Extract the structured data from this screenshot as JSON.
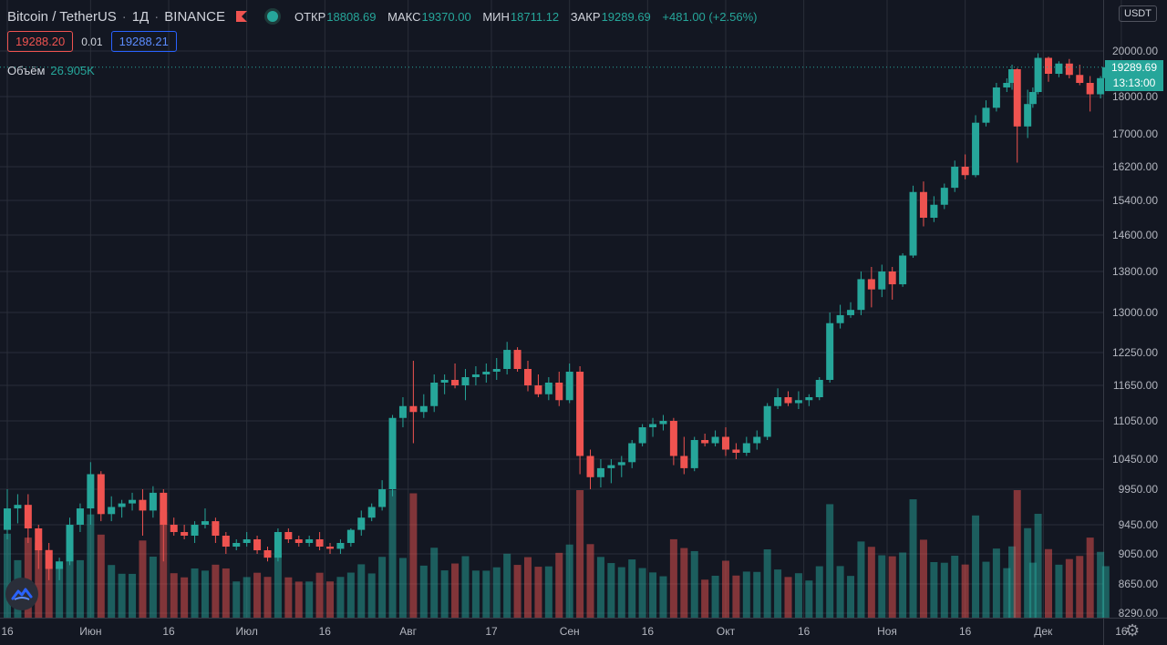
{
  "header": {
    "symbol": "Bitcoin / TetherUS",
    "interval": "1Д",
    "exchange": "BINANCE",
    "open_label": "ОТКР",
    "open": "18808.69",
    "high_label": "МАКС",
    "high": "19370.00",
    "low_label": "МИН",
    "low": "18711.12",
    "close_label": "ЗАКР",
    "close": "19289.69",
    "change": "+481.00 (+2.56%)"
  },
  "trade": {
    "sell": "19288.20",
    "spread": "0.01",
    "buy": "19288.21"
  },
  "volume": {
    "label": "Объём",
    "value": "26.905K"
  },
  "currency": "USDT",
  "price_label": {
    "price": "19289.69",
    "countdown": "13:13:00"
  },
  "icons": {
    "flag": "flag-icon",
    "status": "market-status-icon",
    "settings": "gear-icon",
    "logo": "tradingview-logo-icon"
  },
  "colors": {
    "up": "#26a69a",
    "down": "#ef5350",
    "background": "#131722",
    "grid": "#2a2e39"
  },
  "chart_data": {
    "type": "candlestick",
    "y_ticks": [
      "20000.00",
      "18000.00",
      "17000.00",
      "16200.00",
      "15400.00",
      "14600.00",
      "13800.00",
      "13000.00",
      "12250.00",
      "11650.00",
      "11050.00",
      "10450.00",
      "9950.00",
      "9450.00",
      "9050.00",
      "8650.00",
      "8290.00"
    ],
    "x_ticks": [
      "16",
      "Июн",
      "16",
      "Июл",
      "16",
      "Авг",
      "17",
      "Сен",
      "16",
      "Окт",
      "16",
      "Ноя",
      "16",
      "Дек",
      "16"
    ],
    "series": [
      {
        "d": "2020-05-16",
        "o": 9380,
        "h": 9950,
        "l": 9250,
        "c": 9680
      },
      {
        "d": "2020-05-18",
        "o": 9680,
        "h": 9880,
        "l": 9470,
        "c": 9730
      },
      {
        "d": "2020-05-20",
        "o": 9730,
        "h": 9880,
        "l": 9200,
        "c": 9400
      },
      {
        "d": "2020-05-22",
        "o": 9400,
        "h": 9450,
        "l": 8850,
        "c": 9100
      },
      {
        "d": "2020-05-24",
        "o": 9100,
        "h": 9200,
        "l": 8700,
        "c": 8850
      },
      {
        "d": "2020-05-26",
        "o": 8850,
        "h": 9000,
        "l": 8700,
        "c": 8950
      },
      {
        "d": "2020-05-28",
        "o": 8950,
        "h": 9550,
        "l": 8900,
        "c": 9450
      },
      {
        "d": "2020-05-30",
        "o": 9450,
        "h": 9750,
        "l": 9350,
        "c": 9680
      },
      {
        "d": "2020-06-01",
        "o": 9680,
        "h": 10400,
        "l": 9450,
        "c": 10200
      },
      {
        "d": "2020-06-03",
        "o": 10200,
        "h": 10250,
        "l": 9500,
        "c": 9600
      },
      {
        "d": "2020-06-05",
        "o": 9600,
        "h": 9850,
        "l": 9500,
        "c": 9700
      },
      {
        "d": "2020-06-07",
        "o": 9700,
        "h": 9800,
        "l": 9550,
        "c": 9750
      },
      {
        "d": "2020-06-09",
        "o": 9750,
        "h": 9900,
        "l": 9650,
        "c": 9800
      },
      {
        "d": "2020-06-11",
        "o": 9800,
        "h": 9950,
        "l": 9300,
        "c": 9650
      },
      {
        "d": "2020-06-13",
        "o": 9650,
        "h": 10000,
        "l": 9550,
        "c": 9900
      },
      {
        "d": "2020-06-15",
        "o": 9900,
        "h": 9950,
        "l": 8950,
        "c": 9450
      },
      {
        "d": "2020-06-17",
        "o": 9450,
        "h": 9550,
        "l": 9300,
        "c": 9350
      },
      {
        "d": "2020-06-19",
        "o": 9350,
        "h": 9450,
        "l": 9250,
        "c": 9300
      },
      {
        "d": "2020-06-21",
        "o": 9300,
        "h": 9500,
        "l": 9200,
        "c": 9450
      },
      {
        "d": "2020-06-23",
        "o": 9450,
        "h": 9680,
        "l": 9400,
        "c": 9500
      },
      {
        "d": "2020-06-25",
        "o": 9500,
        "h": 9550,
        "l": 9200,
        "c": 9300
      },
      {
        "d": "2020-06-27",
        "o": 9300,
        "h": 9350,
        "l": 9050,
        "c": 9150
      },
      {
        "d": "2020-06-29",
        "o": 9150,
        "h": 9250,
        "l": 9100,
        "c": 9200
      },
      {
        "d": "2020-07-01",
        "o": 9200,
        "h": 9350,
        "l": 9150,
        "c": 9250
      },
      {
        "d": "2020-07-03",
        "o": 9250,
        "h": 9300,
        "l": 9050,
        "c": 9100
      },
      {
        "d": "2020-07-05",
        "o": 9100,
        "h": 9150,
        "l": 8950,
        "c": 9000
      },
      {
        "d": "2020-07-07",
        "o": 9000,
        "h": 9400,
        "l": 8950,
        "c": 9350
      },
      {
        "d": "2020-07-09",
        "o": 9350,
        "h": 9400,
        "l": 9200,
        "c": 9250
      },
      {
        "d": "2020-07-11",
        "o": 9250,
        "h": 9300,
        "l": 9150,
        "c": 9200
      },
      {
        "d": "2020-07-13",
        "o": 9200,
        "h": 9300,
        "l": 9150,
        "c": 9250
      },
      {
        "d": "2020-07-15",
        "o": 9250,
        "h": 9350,
        "l": 9100,
        "c": 9150
      },
      {
        "d": "2020-07-17",
        "o": 9150,
        "h": 9200,
        "l": 9050,
        "c": 9120
      },
      {
        "d": "2020-07-19",
        "o": 9120,
        "h": 9250,
        "l": 9050,
        "c": 9200
      },
      {
        "d": "2020-07-21",
        "o": 9200,
        "h": 9400,
        "l": 9150,
        "c": 9380
      },
      {
        "d": "2020-07-23",
        "o": 9380,
        "h": 9650,
        "l": 9300,
        "c": 9550
      },
      {
        "d": "2020-07-25",
        "o": 9550,
        "h": 9750,
        "l": 9500,
        "c": 9700
      },
      {
        "d": "2020-07-27",
        "o": 9700,
        "h": 10100,
        "l": 9650,
        "c": 9950
      },
      {
        "d": "2020-07-29",
        "o": 9950,
        "h": 11150,
        "l": 9850,
        "c": 11100
      },
      {
        "d": "2020-07-31",
        "o": 11100,
        "h": 11450,
        "l": 10950,
        "c": 11300
      },
      {
        "d": "2020-08-02",
        "o": 11300,
        "h": 12100,
        "l": 10700,
        "c": 11200
      },
      {
        "d": "2020-08-04",
        "o": 11200,
        "h": 11500,
        "l": 11100,
        "c": 11300
      },
      {
        "d": "2020-08-06",
        "o": 11300,
        "h": 11850,
        "l": 11200,
        "c": 11700
      },
      {
        "d": "2020-08-08",
        "o": 11700,
        "h": 11850,
        "l": 11500,
        "c": 11750
      },
      {
        "d": "2020-08-10",
        "o": 11750,
        "h": 12050,
        "l": 11600,
        "c": 11650
      },
      {
        "d": "2020-08-12",
        "o": 11650,
        "h": 11950,
        "l": 11400,
        "c": 11800
      },
      {
        "d": "2020-08-14",
        "o": 11800,
        "h": 12000,
        "l": 11650,
        "c": 11850
      },
      {
        "d": "2020-08-16",
        "o": 11850,
        "h": 12050,
        "l": 11700,
        "c": 11900
      },
      {
        "d": "2020-08-18",
        "o": 11900,
        "h": 12150,
        "l": 11750,
        "c": 11950
      },
      {
        "d": "2020-08-20",
        "o": 11950,
        "h": 12450,
        "l": 11850,
        "c": 12300
      },
      {
        "d": "2020-08-22",
        "o": 12300,
        "h": 12350,
        "l": 11900,
        "c": 11950
      },
      {
        "d": "2020-08-24",
        "o": 11950,
        "h": 12100,
        "l": 11550,
        "c": 11650
      },
      {
        "d": "2020-08-26",
        "o": 11650,
        "h": 11850,
        "l": 11450,
        "c": 11500
      },
      {
        "d": "2020-08-28",
        "o": 11500,
        "h": 11800,
        "l": 11400,
        "c": 11700
      },
      {
        "d": "2020-08-30",
        "o": 11700,
        "h": 11900,
        "l": 11300,
        "c": 11400
      },
      {
        "d": "2020-09-01",
        "o": 11400,
        "h": 12050,
        "l": 11350,
        "c": 11900
      },
      {
        "d": "2020-09-03",
        "o": 11900,
        "h": 12000,
        "l": 10200,
        "c": 10500
      },
      {
        "d": "2020-09-05",
        "o": 10500,
        "h": 10600,
        "l": 9950,
        "c": 10150
      },
      {
        "d": "2020-09-07",
        "o": 10150,
        "h": 10450,
        "l": 9980,
        "c": 10300
      },
      {
        "d": "2020-09-09",
        "o": 10300,
        "h": 10450,
        "l": 10050,
        "c": 10350
      },
      {
        "d": "2020-09-11",
        "o": 10350,
        "h": 10500,
        "l": 10150,
        "c": 10400
      },
      {
        "d": "2020-09-13",
        "o": 10400,
        "h": 10750,
        "l": 10300,
        "c": 10700
      },
      {
        "d": "2020-09-15",
        "o": 10700,
        "h": 11000,
        "l": 10650,
        "c": 10950
      },
      {
        "d": "2020-09-17",
        "o": 10950,
        "h": 11100,
        "l": 10800,
        "c": 11000
      },
      {
        "d": "2020-09-19",
        "o": 11000,
        "h": 11150,
        "l": 10900,
        "c": 11050
      },
      {
        "d": "2020-09-21",
        "o": 11050,
        "h": 11100,
        "l": 10350,
        "c": 10500
      },
      {
        "d": "2020-09-23",
        "o": 10500,
        "h": 10800,
        "l": 10200,
        "c": 10300
      },
      {
        "d": "2020-09-25",
        "o": 10300,
        "h": 10800,
        "l": 10250,
        "c": 10750
      },
      {
        "d": "2020-09-27",
        "o": 10750,
        "h": 10850,
        "l": 10650,
        "c": 10700
      },
      {
        "d": "2020-09-29",
        "o": 10700,
        "h": 10900,
        "l": 10650,
        "c": 10800
      },
      {
        "d": "2020-10-01",
        "o": 10800,
        "h": 10950,
        "l": 10500,
        "c": 10600
      },
      {
        "d": "2020-10-03",
        "o": 10600,
        "h": 10700,
        "l": 10450,
        "c": 10550
      },
      {
        "d": "2020-10-05",
        "o": 10550,
        "h": 10800,
        "l": 10500,
        "c": 10700
      },
      {
        "d": "2020-10-07",
        "o": 10700,
        "h": 10900,
        "l": 10600,
        "c": 10800
      },
      {
        "d": "2020-10-09",
        "o": 10800,
        "h": 11350,
        "l": 10750,
        "c": 11300
      },
      {
        "d": "2020-10-11",
        "o": 11300,
        "h": 11600,
        "l": 11250,
        "c": 11450
      },
      {
        "d": "2020-10-13",
        "o": 11450,
        "h": 11550,
        "l": 11300,
        "c": 11350
      },
      {
        "d": "2020-10-15",
        "o": 11350,
        "h": 11550,
        "l": 11250,
        "c": 11400
      },
      {
        "d": "2020-10-17",
        "o": 11400,
        "h": 11500,
        "l": 11300,
        "c": 11450
      },
      {
        "d": "2020-10-19",
        "o": 11450,
        "h": 11800,
        "l": 11400,
        "c": 11750
      },
      {
        "d": "2020-10-21",
        "o": 11750,
        "h": 13000,
        "l": 11700,
        "c": 12800
      },
      {
        "d": "2020-10-23",
        "o": 12800,
        "h": 13150,
        "l": 12700,
        "c": 12950
      },
      {
        "d": "2020-10-25",
        "o": 12950,
        "h": 13200,
        "l": 12900,
        "c": 13050
      },
      {
        "d": "2020-10-27",
        "o": 13050,
        "h": 13800,
        "l": 12950,
        "c": 13650
      },
      {
        "d": "2020-10-29",
        "o": 13650,
        "h": 13900,
        "l": 13100,
        "c": 13450
      },
      {
        "d": "2020-10-31",
        "o": 13450,
        "h": 13950,
        "l": 13300,
        "c": 13800
      },
      {
        "d": "2020-11-02",
        "o": 13800,
        "h": 13900,
        "l": 13250,
        "c": 13550
      },
      {
        "d": "2020-11-04",
        "o": 13550,
        "h": 14200,
        "l": 13500,
        "c": 14150
      },
      {
        "d": "2020-11-06",
        "o": 14150,
        "h": 15750,
        "l": 14100,
        "c": 15600
      },
      {
        "d": "2020-11-08",
        "o": 15600,
        "h": 15850,
        "l": 14800,
        "c": 15000
      },
      {
        "d": "2020-11-10",
        "o": 15000,
        "h": 15500,
        "l": 14900,
        "c": 15300
      },
      {
        "d": "2020-11-12",
        "o": 15300,
        "h": 15800,
        "l": 15200,
        "c": 15700
      },
      {
        "d": "2020-11-14",
        "o": 15700,
        "h": 16350,
        "l": 15600,
        "c": 16200
      },
      {
        "d": "2020-11-16",
        "o": 16200,
        "h": 16500,
        "l": 15900,
        "c": 16000
      },
      {
        "d": "2020-11-18",
        "o": 16000,
        "h": 17500,
        "l": 15950,
        "c": 17300
      },
      {
        "d": "2020-11-20",
        "o": 17300,
        "h": 17900,
        "l": 17200,
        "c": 17700
      },
      {
        "d": "2020-11-22",
        "o": 17700,
        "h": 18600,
        "l": 17600,
        "c": 18400
      },
      {
        "d": "2020-11-24",
        "o": 18400,
        "h": 18800,
        "l": 18200,
        "c": 18600
      },
      {
        "d": "2020-11-25",
        "o": 18600,
        "h": 19400,
        "l": 18300,
        "c": 19200
      },
      {
        "d": "2020-11-26",
        "o": 19200,
        "h": 19250,
        "l": 16300,
        "c": 17200
      },
      {
        "d": "2020-11-28",
        "o": 17200,
        "h": 18300,
        "l": 16900,
        "c": 17800
      },
      {
        "d": "2020-11-29",
        "o": 17800,
        "h": 18400,
        "l": 17700,
        "c": 18200
      },
      {
        "d": "2020-11-30",
        "o": 18200,
        "h": 19900,
        "l": 18100,
        "c": 19700
      },
      {
        "d": "2020-12-02",
        "o": 19700,
        "h": 19750,
        "l": 18650,
        "c": 19000
      },
      {
        "d": "2020-12-04",
        "o": 19000,
        "h": 19550,
        "l": 18850,
        "c": 19450
      },
      {
        "d": "2020-12-06",
        "o": 19450,
        "h": 19650,
        "l": 18800,
        "c": 18950
      },
      {
        "d": "2020-12-08",
        "o": 18950,
        "h": 19400,
        "l": 18500,
        "c": 18600
      },
      {
        "d": "2020-12-10",
        "o": 18600,
        "h": 18900,
        "l": 17600,
        "c": 18100
      },
      {
        "d": "2020-12-12",
        "o": 18100,
        "h": 18900,
        "l": 17950,
        "c": 18808.69
      },
      {
        "d": "2020-12-13",
        "o": 18808.69,
        "h": 19370,
        "l": 18711.12,
        "c": 19289.69
      }
    ]
  }
}
